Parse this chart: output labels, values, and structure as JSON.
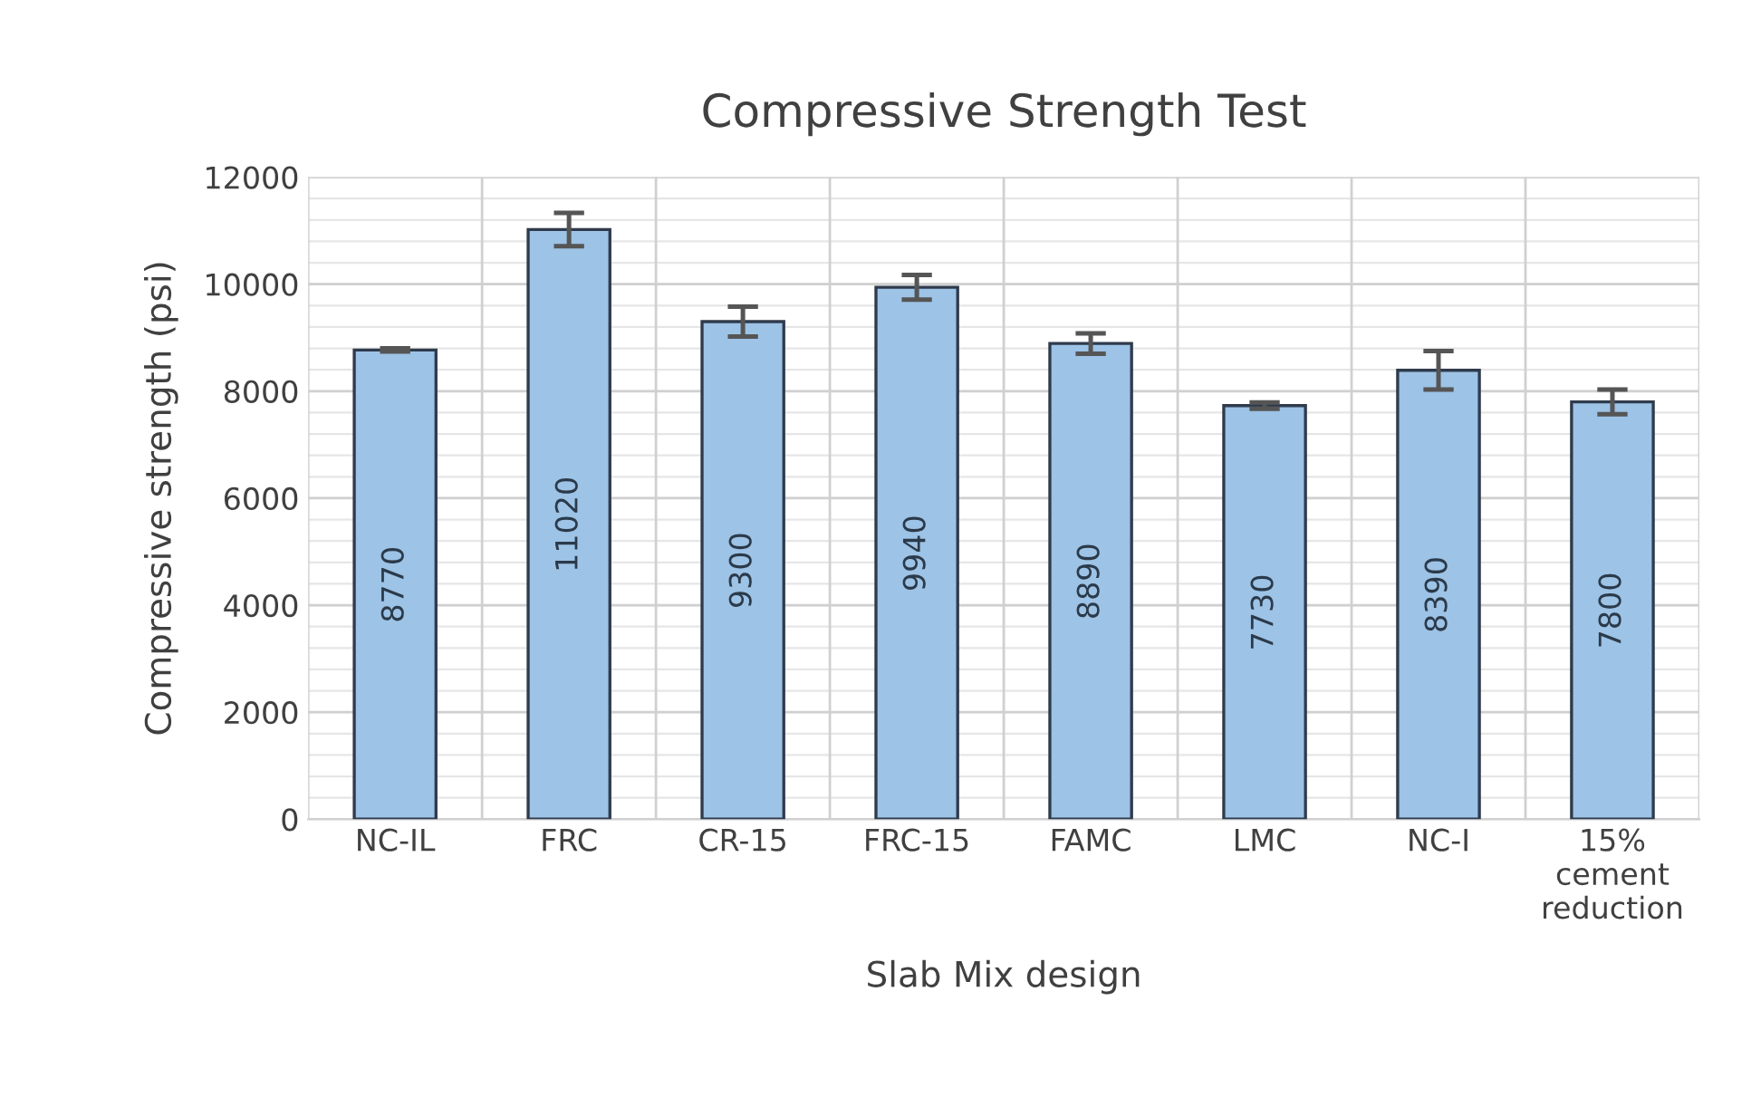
{
  "chart_data": {
    "type": "bar",
    "title": "Compressive Strength Test",
    "xlabel": "Slab Mix design",
    "ylabel": "Compressive strength (psi)",
    "categories": [
      "NC-IL",
      "FRC",
      "CR-15",
      "FRC-15",
      "FAMC",
      "LMC",
      "NC-I",
      "15% cement reduction"
    ],
    "values": [
      8770,
      11020,
      9300,
      9940,
      8890,
      7730,
      8390,
      7800
    ],
    "errors": [
      30,
      310,
      280,
      230,
      190,
      60,
      360,
      230
    ],
    "color": "#9dc3e6",
    "data_labels": true,
    "ylim": [
      0,
      12000
    ],
    "yticks": [
      0,
      2000,
      4000,
      6000,
      8000,
      10000,
      12000
    ],
    "grid": true,
    "legend": false
  }
}
